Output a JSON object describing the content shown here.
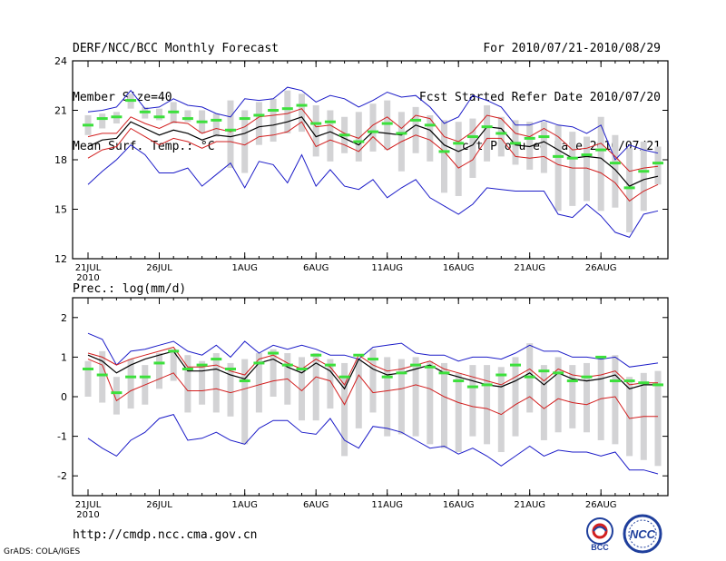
{
  "header": {
    "left": [
      "DERF/NCC/BCC Monthly Forecast",
      "Member Size=40",
      "Mean Surf. Temp.: °C"
    ],
    "right": [
      "For 2010/07/21-2010/08/29",
      "Fcst Started Refer Date 2010/07/20",
      "Fcst Produced Date 2010/07/21"
    ]
  },
  "footer": {
    "url": "http://cmdp.ncc.cma.gov.cn",
    "credit": "GrADS: COLA/IGES"
  },
  "logos": {
    "bcc": "BCC",
    "ncc": "NCC"
  },
  "colors": {
    "box": "#d3d3d5",
    "mean": "#000000",
    "range": "#1c1cc8",
    "spread": "#d21e1e",
    "control": "#3ce03c"
  },
  "chart_data": [
    {
      "type": "line",
      "title": "Mean Surf. Temp.: °C",
      "xlabel": "",
      "ylabel": "",
      "ylim": [
        12,
        24
      ],
      "yticks": [
        "12",
        "15",
        "18",
        "21",
        "24"
      ],
      "xtick_labels": [
        "21JUL",
        "26JUL",
        "1AUG",
        "6AUG",
        "11AUG",
        "16AUG",
        "21AUG",
        "26AUG"
      ],
      "xtick_index": [
        0,
        5,
        11,
        16,
        21,
        26,
        31,
        36
      ],
      "year_label": "2010",
      "series": [
        {
          "name": "max",
          "values": [
            16.5,
            17.3,
            18.0,
            18.9,
            18.3,
            17.2,
            17.2,
            17.5,
            16.4,
            17.1,
            17.8,
            16.3,
            17.9,
            17.7,
            16.6,
            18.3,
            16.4,
            17.4,
            16.4,
            16.2,
            16.8,
            15.7,
            16.3,
            16.8,
            15.7,
            15.2,
            14.7,
            15.3,
            16.3,
            16.2,
            16.1,
            16.1,
            16.1,
            14.7,
            14.5,
            15.3,
            14.6,
            13.6,
            13.3,
            14.7,
            14.9
          ]
        },
        {
          "name": "min",
          "values": [
            20.9,
            21.0,
            21.2,
            22.2,
            21.1,
            21.2,
            21.7,
            21.3,
            21.2,
            20.8,
            20.6,
            21.7,
            21.6,
            21.7,
            22.4,
            22.2,
            21.5,
            21.9,
            21.7,
            21.2,
            21.6,
            22.1,
            21.8,
            21.9,
            21.2,
            20.2,
            20.6,
            21.9,
            21.6,
            21.2,
            20.1,
            20.1,
            20.4,
            20.1,
            20.0,
            19.6,
            20.1,
            18.0,
            18.9,
            18.6,
            18.4
          ]
        },
        {
          "name": "lower",
          "values": [
            18.1,
            18.6,
            18.8,
            19.9,
            19.4,
            18.9,
            19.3,
            19.1,
            18.7,
            19.1,
            19.1,
            18.9,
            19.4,
            19.5,
            19.7,
            20.3,
            18.8,
            19.2,
            18.9,
            18.5,
            19.4,
            18.6,
            19.1,
            19.5,
            19.2,
            18.5,
            17.5,
            18.0,
            19.3,
            19.3,
            18.2,
            18.1,
            18.2,
            17.7,
            17.5,
            17.5,
            17.2,
            16.6,
            15.5,
            16.1,
            16.5
          ]
        },
        {
          "name": "upper",
          "values": [
            19.4,
            19.6,
            19.6,
            20.6,
            20.2,
            19.9,
            20.3,
            20.2,
            19.6,
            19.9,
            19.7,
            20.0,
            20.6,
            20.7,
            20.8,
            21.1,
            20.0,
            20.1,
            19.6,
            19.3,
            20.1,
            20.6,
            19.9,
            20.7,
            20.5,
            19.4,
            19.1,
            19.7,
            20.7,
            20.5,
            19.6,
            19.4,
            19.9,
            19.4,
            18.6,
            18.7,
            19.0,
            18.2,
            17.3,
            17.5,
            17.6
          ]
        },
        {
          "name": "mean",
          "values": [
            18.8,
            19.2,
            19.3,
            20.3,
            19.9,
            19.5,
            19.8,
            19.6,
            19.2,
            19.5,
            19.4,
            19.6,
            20.0,
            20.1,
            20.3,
            20.6,
            19.4,
            19.7,
            19.3,
            18.9,
            19.7,
            19.6,
            19.5,
            20.1,
            19.8,
            18.9,
            18.5,
            18.9,
            20.0,
            19.9,
            18.9,
            18.8,
            19.1,
            18.6,
            18.1,
            18.2,
            18.1,
            17.4,
            16.4,
            16.8,
            17.0
          ]
        },
        {
          "name": "control",
          "values": [
            20.1,
            20.5,
            20.6,
            21.6,
            20.9,
            20.6,
            20.9,
            20.5,
            20.3,
            20.4,
            19.8,
            20.5,
            20.7,
            21.0,
            21.1,
            21.3,
            20.2,
            20.3,
            19.5,
            19.1,
            19.7,
            20.2,
            19.6,
            20.4,
            20.1,
            18.5,
            19.0,
            19.4,
            20.0,
            19.6,
            19.0,
            19.3,
            19.4,
            18.2,
            18.1,
            18.3,
            18.6,
            17.8,
            16.3,
            17.3,
            17.8
          ]
        },
        {
          "name": "box_low",
          "values": [
            19.5,
            19.9,
            20.2,
            21.1,
            20.5,
            20.4,
            20.2,
            20.3,
            19.6,
            19.4,
            17.5,
            17.2,
            18.9,
            19.1,
            19.6,
            19.7,
            18.2,
            17.9,
            18.4,
            17.9,
            18.5,
            18.6,
            17.3,
            18.4,
            17.9,
            16.0,
            15.8,
            16.9,
            17.9,
            18.2,
            17.7,
            17.4,
            17.2,
            14.9,
            15.2,
            15.5,
            14.9,
            15.1,
            13.6,
            14.9,
            16.5
          ]
        },
        {
          "name": "box_high",
          "values": [
            20.7,
            20.8,
            20.9,
            22.0,
            21.2,
            21.1,
            21.5,
            21.0,
            21.0,
            20.8,
            21.6,
            21.0,
            21.5,
            21.7,
            22.2,
            22.0,
            21.3,
            21.0,
            20.6,
            20.9,
            21.4,
            21.6,
            20.9,
            21.2,
            20.7,
            20.4,
            20.3,
            20.5,
            21.3,
            20.6,
            20.4,
            20.3,
            20.3,
            20.1,
            19.7,
            19.4,
            20.6,
            19.5,
            18.7,
            19.1,
            18.8
          ]
        }
      ]
    },
    {
      "type": "line",
      "title": "Prec.: log(mm/d)",
      "xlabel": "",
      "ylabel": "",
      "ylim": [
        -2.5,
        2.5
      ],
      "yticks": [
        "-2",
        "-1",
        "0",
        "1",
        "2"
      ],
      "xtick_labels": [
        "21JUL",
        "26JUL",
        "1AUG",
        "6AUG",
        "11AUG",
        "16AUG",
        "21AUG",
        "26AUG"
      ],
      "xtick_index": [
        0,
        5,
        11,
        16,
        21,
        26,
        31,
        36
      ],
      "year_label": "2010",
      "series": [
        {
          "name": "max",
          "values": [
            -1.05,
            -1.3,
            -1.5,
            -1.1,
            -0.9,
            -0.55,
            -0.45,
            -1.1,
            -1.05,
            -0.9,
            -1.1,
            -1.2,
            -0.8,
            -0.6,
            -0.6,
            -0.9,
            -0.95,
            -0.55,
            -1.1,
            -1.3,
            -0.75,
            -0.8,
            -0.9,
            -1.1,
            -1.3,
            -1.25,
            -1.45,
            -1.3,
            -1.5,
            -1.75,
            -1.5,
            -1.25,
            -1.5,
            -1.35,
            -1.4,
            -1.4,
            -1.5,
            -1.4,
            -1.85,
            -1.85,
            -1.95
          ]
        },
        {
          "name": "min",
          "values": [
            1.6,
            1.45,
            0.8,
            1.15,
            1.2,
            1.3,
            1.4,
            1.15,
            1.05,
            1.3,
            1.0,
            1.4,
            1.1,
            1.3,
            1.2,
            1.3,
            1.2,
            1.05,
            1.05,
            0.95,
            1.25,
            1.3,
            1.35,
            1.1,
            1.05,
            1.05,
            0.9,
            1.0,
            1.0,
            0.95,
            1.1,
            1.3,
            1.15,
            1.15,
            1.0,
            1.0,
            0.95,
            1.0,
            0.75,
            0.8,
            0.85
          ]
        },
        {
          "name": "lower",
          "values": [
            0.95,
            0.8,
            -0.1,
            0.15,
            0.3,
            0.45,
            0.6,
            0.15,
            0.15,
            0.2,
            0.1,
            0.2,
            0.3,
            0.4,
            0.45,
            0.15,
            0.5,
            0.4,
            -0.2,
            0.55,
            0.1,
            0.15,
            0.2,
            0.3,
            0.2,
            0.0,
            -0.15,
            -0.25,
            -0.3,
            -0.45,
            -0.2,
            0.0,
            -0.3,
            -0.05,
            -0.15,
            -0.2,
            -0.05,
            0.0,
            -0.55,
            -0.5,
            -0.5
          ]
        },
        {
          "name": "upper",
          "values": [
            1.1,
            1.0,
            0.8,
            0.95,
            1.05,
            1.15,
            1.25,
            0.75,
            0.75,
            0.8,
            0.65,
            0.55,
            0.95,
            1.05,
            0.85,
            0.7,
            0.95,
            0.75,
            0.3,
            1.05,
            0.8,
            0.65,
            0.7,
            0.8,
            0.9,
            0.7,
            0.6,
            0.5,
            0.4,
            0.3,
            0.5,
            0.7,
            0.4,
            0.7,
            0.55,
            0.5,
            0.55,
            0.65,
            0.3,
            0.35,
            0.35
          ]
        },
        {
          "name": "mean",
          "values": [
            1.05,
            0.9,
            0.6,
            0.8,
            0.95,
            1.05,
            1.15,
            0.65,
            0.65,
            0.7,
            0.55,
            0.45,
            0.85,
            0.95,
            0.75,
            0.6,
            0.85,
            0.65,
            0.2,
            0.95,
            0.7,
            0.55,
            0.6,
            0.7,
            0.8,
            0.6,
            0.5,
            0.4,
            0.3,
            0.25,
            0.4,
            0.6,
            0.3,
            0.6,
            0.45,
            0.4,
            0.45,
            0.55,
            0.2,
            0.3,
            0.3
          ]
        },
        {
          "name": "control",
          "values": [
            0.7,
            0.55,
            0.1,
            0.5,
            0.5,
            0.85,
            1.15,
            0.7,
            0.8,
            0.95,
            0.7,
            0.4,
            0.85,
            1.1,
            0.8,
            0.7,
            1.05,
            0.8,
            0.5,
            1.05,
            0.95,
            0.5,
            0.6,
            0.8,
            0.75,
            0.6,
            0.4,
            0.25,
            0.3,
            0.55,
            0.8,
            0.5,
            0.65,
            0.6,
            0.4,
            0.5,
            1.0,
            0.4,
            0.4,
            0.35,
            0.3
          ]
        },
        {
          "name": "box_low",
          "values": [
            0.0,
            -0.15,
            -0.45,
            -0.3,
            -0.2,
            0.2,
            0.4,
            -0.4,
            -0.2,
            -0.4,
            -0.5,
            -1.2,
            -0.4,
            0.0,
            -0.2,
            -0.6,
            -0.6,
            -0.3,
            -1.5,
            -0.8,
            -0.4,
            -1.0,
            -0.95,
            -1.0,
            -1.2,
            -1.3,
            -1.4,
            -1.0,
            -1.2,
            -1.4,
            -1.0,
            -0.4,
            -1.1,
            -0.9,
            -0.8,
            -0.9,
            -1.1,
            -1.2,
            -1.5,
            -1.6,
            -1.75
          ]
        },
        {
          "name": "box_high",
          "values": [
            0.9,
            1.15,
            0.5,
            0.95,
            0.8,
            1.1,
            1.2,
            1.05,
            0.9,
            1.1,
            0.85,
            0.95,
            1.1,
            1.2,
            1.1,
            1.0,
            1.1,
            0.95,
            0.85,
            0.95,
            1.2,
            1.0,
            0.95,
            1.0,
            0.9,
            0.85,
            0.6,
            0.8,
            0.8,
            0.75,
            1.0,
            1.35,
            0.8,
            1.0,
            0.8,
            0.85,
            0.95,
            1.05,
            0.5,
            0.6,
            0.65
          ]
        }
      ]
    }
  ]
}
